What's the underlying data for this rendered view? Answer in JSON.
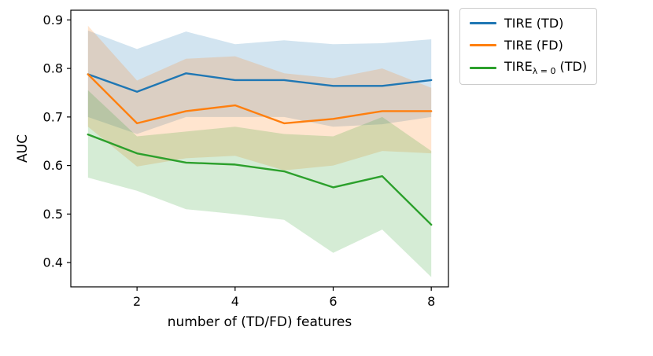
{
  "figure": {
    "background": "#ffffff",
    "axis_color": "#000000"
  },
  "chart_data": {
    "type": "line",
    "title": "",
    "xlabel": "number of (TD/FD) features",
    "ylabel": "AUC",
    "x": [
      1,
      2,
      3,
      4,
      5,
      6,
      7,
      8
    ],
    "xticks": [
      2,
      4,
      6,
      8
    ],
    "yticks": [
      0.4,
      0.5,
      0.6,
      0.7,
      0.8,
      0.9
    ],
    "xlim": [
      0.65,
      8.35
    ],
    "ylim": [
      0.35,
      0.92
    ],
    "grid": false,
    "legend_position": "outside-upper-right",
    "band_alpha": 0.2,
    "series": [
      {
        "id": "tire-td",
        "label_prefix": "TIRE",
        "label_subscript": "",
        "label_suffix": " (TD)",
        "color": "#1f77b4",
        "values": [
          0.788,
          0.752,
          0.79,
          0.776,
          0.776,
          0.764,
          0.764,
          0.776
        ],
        "band_high": [
          0.878,
          0.84,
          0.876,
          0.85,
          0.858,
          0.85,
          0.852,
          0.86
        ],
        "band_low": [
          0.7,
          0.665,
          0.7,
          0.7,
          0.7,
          0.68,
          0.685,
          0.7
        ]
      },
      {
        "id": "tire-fd",
        "label_prefix": "TIRE",
        "label_subscript": "",
        "label_suffix": " (FD)",
        "color": "#ff7f0e",
        "values": [
          0.788,
          0.687,
          0.712,
          0.724,
          0.687,
          0.696,
          0.712,
          0.712
        ],
        "band_high": [
          0.888,
          0.775,
          0.82,
          0.825,
          0.79,
          0.78,
          0.8,
          0.76
        ],
        "band_low": [
          0.68,
          0.598,
          0.615,
          0.62,
          0.59,
          0.6,
          0.63,
          0.625
        ]
      },
      {
        "id": "tire-lambda0-td",
        "label_prefix": "TIRE",
        "label_subscript": "λ = 0",
        "label_suffix": " (TD)",
        "color": "#2ca02c",
        "values": [
          0.664,
          0.625,
          0.606,
          0.602,
          0.588,
          0.555,
          0.578,
          0.478
        ],
        "band_high": [
          0.755,
          0.66,
          0.67,
          0.68,
          0.665,
          0.66,
          0.7,
          0.63
        ],
        "band_low": [
          0.575,
          0.548,
          0.51,
          0.5,
          0.488,
          0.42,
          0.468,
          0.37
        ]
      }
    ]
  }
}
